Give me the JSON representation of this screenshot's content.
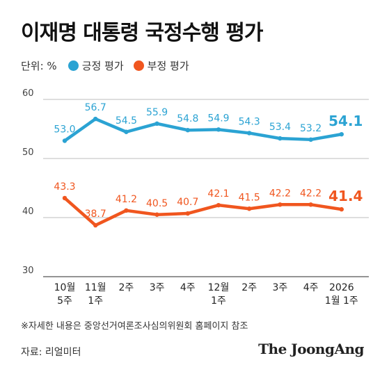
{
  "title": "이재명 대통령 국정수행 평가",
  "legend": {
    "unit": "단위: %",
    "items": [
      {
        "label": "긍정 평가",
        "color": "#2ba3d3"
      },
      {
        "label": "부정 평가",
        "color": "#f0561f"
      }
    ]
  },
  "chart_data": {
    "type": "line",
    "categories": [
      [
        "10월",
        "5주"
      ],
      [
        "11월",
        "1주"
      ],
      [
        "2주"
      ],
      [
        "3주"
      ],
      [
        "4주"
      ],
      [
        "12월",
        "1주"
      ],
      [
        "2주"
      ],
      [
        "3주"
      ],
      [
        "4주"
      ],
      [
        "2026",
        "1월 1주"
      ]
    ],
    "series": [
      {
        "name": "긍정 평가",
        "color": "#2ba3d3",
        "values": [
          53.0,
          56.7,
          54.5,
          55.9,
          54.8,
          54.9,
          54.3,
          53.4,
          53.2,
          54.1
        ]
      },
      {
        "name": "부정 평가",
        "color": "#f0561f",
        "values": [
          43.3,
          38.7,
          41.2,
          40.5,
          40.7,
          42.1,
          41.5,
          42.2,
          42.2,
          41.4
        ]
      }
    ],
    "yticks": [
      60,
      50,
      40,
      30
    ],
    "ylim": [
      30,
      60
    ],
    "grid": true,
    "legend_position": "top-left"
  },
  "footnote": "※자세한 내용은 중앙선거여론조사심의위원회 홈페이지 참조",
  "source": "자료: 리얼미터",
  "brand": "The JoongAng"
}
